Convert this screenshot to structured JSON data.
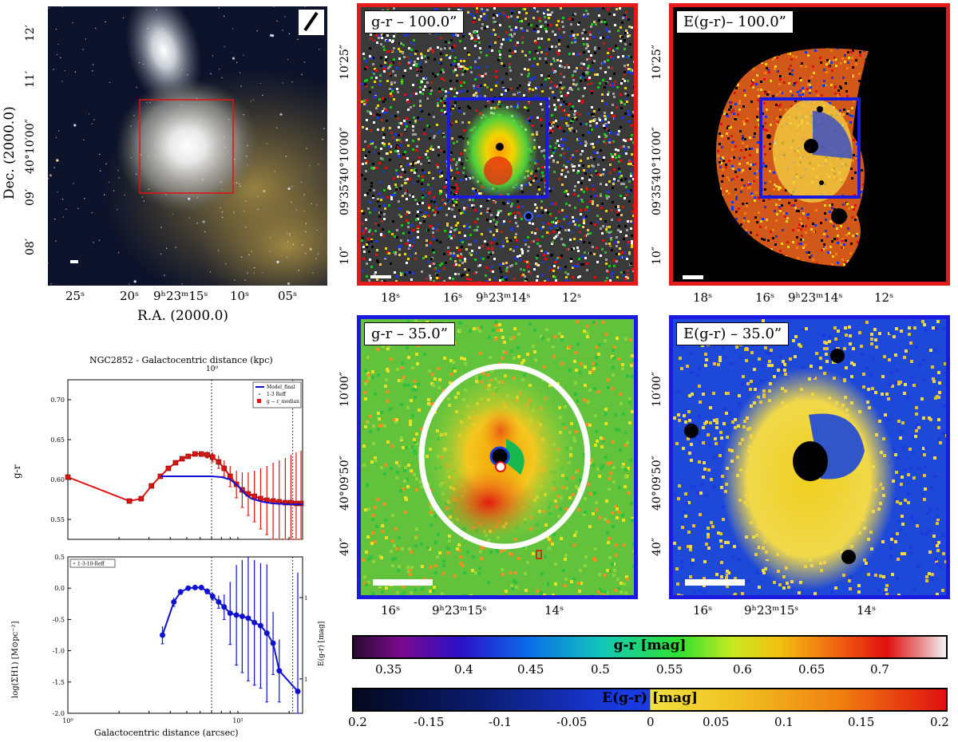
{
  "panels": {
    "rgb": {
      "dec_ticks": [
        "12′",
        "11′",
        "40°10′00″",
        "09′",
        "08′"
      ],
      "ra_ticks": [
        "25ˢ",
        "20ˢ",
        "9ʰ23ᵐ15ˢ",
        "10ˢ",
        "05ˢ"
      ],
      "xlabel": "R.A. (2000.0)",
      "ylabel": "Dec. (2000.0)"
    },
    "gr100": {
      "tag": "g-r – 100.0”",
      "dec_ticks": [
        "10′25″",
        "40°10′00″",
        "09′35″",
        "10″"
      ],
      "ra_ticks": [
        "18ˢ",
        "16ˢ",
        "9ʰ23ᵐ14ˢ",
        "12ˢ"
      ]
    },
    "egr100": {
      "tag": "E(g-r)– 100.0”",
      "dec_ticks": [
        "10′25″",
        "40°10′00″",
        "09′35″",
        "10″"
      ],
      "ra_ticks": [
        "18ˢ",
        "16ˢ",
        "9ʰ23ᵐ14ˢ",
        "12ˢ"
      ]
    },
    "gr35": {
      "tag": "g-r – 35.0”",
      "dec_ticks": [
        "10′00″",
        "40°09′50″",
        "40″"
      ],
      "ra_ticks": [
        "16ˢ",
        "9ʰ23ᵐ15ˢ",
        "14ˢ"
      ]
    },
    "egr35": {
      "tag": "E(g-r) – 35.0”",
      "dec_ticks": [
        "10′00″",
        "40°09′50″",
        "40″"
      ],
      "ra_ticks": [
        "16ˢ",
        "9ʰ23ᵐ15ˢ",
        "14ˢ"
      ]
    }
  },
  "colorbars": {
    "gr": {
      "label": "g-r [mag]",
      "ticks": [
        "0.35",
        "0.4",
        "0.45",
        "0.5",
        "0.55",
        "0.6",
        "0.65",
        "0.7"
      ]
    },
    "egr": {
      "label": "E(g-r) [mag]",
      "ticks": [
        "0.2",
        "-0.15",
        "-0.1",
        "-0.05",
        "0",
        "0.05",
        "0.1",
        "0.15",
        "0.2"
      ]
    }
  },
  "chart_data": [
    {
      "type": "line",
      "title": "NGC2852 - Galactocentric distance (kpc)",
      "top_tick": "10⁰",
      "ylabel": "g-r",
      "yticks": [
        "0.70",
        "0.65",
        "0.60",
        "0.55"
      ],
      "ylim": [
        0.525,
        0.725
      ],
      "xlim": [
        1,
        24
      ],
      "xscale": "log",
      "legend": {
        "placement": "top-right",
        "entries": [
          "Model_final",
          "1-3 Reff",
          "g − r_median"
        ]
      },
      "reff_lines": [
        7.0,
        21.0
      ],
      "series": [
        {
          "name": "g − r_median",
          "color": "#e0140e",
          "x": [
            1.0,
            2.3,
            2.7,
            3.1,
            3.5,
            3.9,
            4.3,
            4.7,
            5.1,
            5.6,
            6.1,
            6.6,
            7.1,
            7.7,
            8.3,
            9.0,
            9.8,
            10.6,
            11.5,
            12.5,
            13.6,
            14.8,
            16.1,
            17.5,
            19.0,
            20.5,
            22.0,
            23.5
          ],
          "y": [
            0.603,
            0.573,
            0.576,
            0.592,
            0.604,
            0.614,
            0.621,
            0.626,
            0.629,
            0.632,
            0.632,
            0.631,
            0.628,
            0.622,
            0.614,
            0.604,
            0.594,
            0.587,
            0.582,
            0.579,
            0.576,
            0.574,
            0.573,
            0.572,
            0.571,
            0.571,
            0.57,
            0.57
          ],
          "err": [
            0,
            0,
            0,
            0,
            0,
            0,
            0,
            0,
            0,
            0,
            0.003,
            0.004,
            0.006,
            0.008,
            0.01,
            0.013,
            0.017,
            0.022,
            0.027,
            0.032,
            0.038,
            0.043,
            0.048,
            0.052,
            0.056,
            0.06,
            0.064,
            0.066
          ]
        },
        {
          "name": "Model_final",
          "color": "#1010d0",
          "x": [
            3.5,
            4,
            5,
            6,
            7,
            8,
            9,
            10,
            11,
            12,
            14,
            16,
            20,
            24
          ],
          "y": [
            0.604,
            0.604,
            0.604,
            0.604,
            0.604,
            0.603,
            0.6,
            0.592,
            0.582,
            0.576,
            0.572,
            0.57,
            0.569,
            0.569
          ]
        }
      ]
    },
    {
      "type": "line",
      "xlabel": "Galactocentric distance (arcsec)",
      "ylabel": "log(ΣH1) [M⊙pc⁻²]",
      "ylabel_right": "E(g-r) [mag]",
      "yticks": [
        "0.5",
        "0.0",
        "-0.5",
        "-1.0",
        "-1.5",
        "-2.0"
      ],
      "ylim": [
        -2.0,
        0.5
      ],
      "xlim": [
        1,
        24
      ],
      "xscale": "log",
      "xticks": [
        "10⁰",
        "10¹"
      ],
      "right_ticks": [
        "10⁻²",
        "10⁻³"
      ],
      "legend": {
        "placement": "top-left",
        "entries": [
          "1-3-10-Reff"
        ]
      },
      "reff_lines": [
        7.0,
        21.0
      ],
      "series": [
        {
          "name": "",
          "color": "#1010d0",
          "x": [
            3.6,
            4.2,
            4.6,
            5.1,
            5.6,
            6.1,
            6.6,
            7.1,
            7.7,
            8.3,
            9.0,
            9.8,
            10.6,
            11.5,
            12.5,
            13.6,
            14.8,
            16.1,
            17.5,
            22.5
          ],
          "y": [
            -0.75,
            -0.22,
            -0.06,
            0.0,
            0.01,
            0.01,
            -0.05,
            -0.13,
            -0.22,
            -0.3,
            -0.4,
            -0.43,
            -0.45,
            -0.48,
            -0.55,
            -0.6,
            -0.72,
            -0.88,
            -1.32,
            -1.65
          ],
          "err": [
            0.14,
            0.07,
            0.04,
            0.03,
            0.03,
            0.03,
            0.04,
            0.06,
            0.1,
            0.2,
            0.5,
            0.8,
            0.9,
            1.0,
            1.0,
            1.0,
            1.1,
            0.5,
            0.5,
            1.9
          ]
        }
      ]
    }
  ]
}
